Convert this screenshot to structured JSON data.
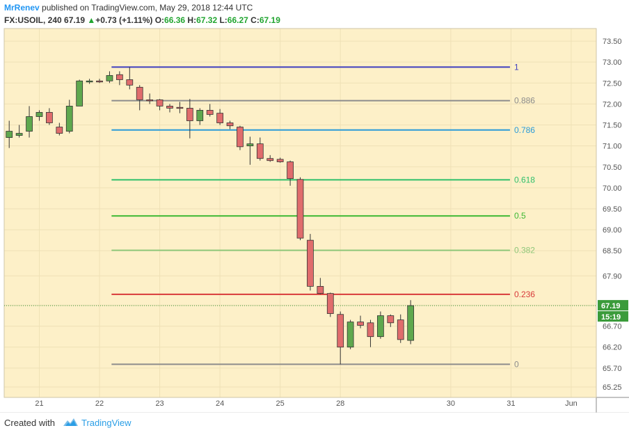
{
  "header": {
    "author": "MrRenev",
    "published_text": "published on TradingView.com, May 29, 2018 12:44 UTC",
    "symbol": "FX:USOIL, 240",
    "last": "67.19",
    "change": "+0.73 (+1.11%)",
    "open_label": "O:",
    "open_value": "66.36",
    "high_label": "H:",
    "high_value": "67.32",
    "low_label": "L:",
    "low_value": "66.27",
    "close_label": "C:",
    "close_value": "67.19",
    "up_arrow_icon": "triangle-up-icon"
  },
  "footer": {
    "created_with": "Created with",
    "brand": "TradingView",
    "logo_icon": "tradingview-cloud-icon"
  },
  "colors": {
    "background": "#fdf0c8",
    "up_candle": "#5fa84e",
    "down_candle": "#e06c6c",
    "price_tag": "#3a9b3a"
  },
  "chart_data": {
    "type": "candlestick",
    "symbol": "FX:USOIL",
    "interval": "240",
    "y_ticks": [
      "73.50",
      "73.00",
      "72.50",
      "72.00",
      "71.50",
      "71.00",
      "70.50",
      "70.00",
      "69.50",
      "69.00",
      "68.50",
      "67.90",
      "67.20",
      "66.70",
      "66.20",
      "65.70",
      "65.25"
    ],
    "ylim": [
      65.0,
      73.8
    ],
    "x_ticks": [
      {
        "label": "21",
        "x": 0
      },
      {
        "label": "22",
        "x": 6
      },
      {
        "label": "23",
        "x": 12
      },
      {
        "label": "24",
        "x": 18
      },
      {
        "label": "25",
        "x": 24
      },
      {
        "label": "28",
        "x": 30
      },
      {
        "label": "30",
        "x": 41
      },
      {
        "label": "31",
        "x": 47
      },
      {
        "label": "Jun",
        "x": 53
      }
    ],
    "xlim": [
      -3.5,
      55.5
    ],
    "last_price": "67.19",
    "countdown": "15:19",
    "grid": true,
    "fib_levels": [
      {
        "label": "1",
        "value": 72.88,
        "color": "#3f3fbf"
      },
      {
        "label": "0.886",
        "value": 72.08,
        "color": "#8c8c8c"
      },
      {
        "label": "0.786",
        "value": 71.38,
        "color": "#2a9bd8"
      },
      {
        "label": "0.618",
        "value": 70.19,
        "color": "#2ebf6a"
      },
      {
        "label": "0.5",
        "value": 69.33,
        "color": "#3cb832"
      },
      {
        "label": "0.382",
        "value": 68.51,
        "color": "#8fc77a"
      },
      {
        "label": "0.236",
        "value": 67.46,
        "color": "#d83a3a"
      },
      {
        "label": "0",
        "value": 65.79,
        "color": "#8c8c8c"
      }
    ],
    "fib_x_start": 7.2,
    "fib_x_end": 46.9,
    "candles": [
      {
        "x": -3,
        "o": 71.2,
        "h": 71.6,
        "l": 70.95,
        "c": 71.35
      },
      {
        "x": -2,
        "o": 71.25,
        "h": 71.5,
        "l": 71.2,
        "c": 71.3
      },
      {
        "x": -1,
        "o": 71.35,
        "h": 71.95,
        "l": 71.2,
        "c": 71.7
      },
      {
        "x": 0,
        "o": 71.7,
        "h": 71.85,
        "l": 71.6,
        "c": 71.8
      },
      {
        "x": 1,
        "o": 71.8,
        "h": 71.9,
        "l": 71.5,
        "c": 71.55
      },
      {
        "x": 2,
        "o": 71.45,
        "h": 71.55,
        "l": 71.25,
        "c": 71.3
      },
      {
        "x": 3,
        "o": 71.35,
        "h": 72.1,
        "l": 71.3,
        "c": 71.95
      },
      {
        "x": 4,
        "o": 71.95,
        "h": 72.58,
        "l": 71.95,
        "c": 72.55
      },
      {
        "x": 5,
        "o": 72.55,
        "h": 72.6,
        "l": 72.48,
        "c": 72.55
      },
      {
        "x": 6,
        "o": 72.55,
        "h": 72.6,
        "l": 72.5,
        "c": 72.53
      },
      {
        "x": 7,
        "o": 72.55,
        "h": 72.78,
        "l": 72.5,
        "c": 72.68
      },
      {
        "x": 8,
        "o": 72.7,
        "h": 72.78,
        "l": 72.45,
        "c": 72.58
      },
      {
        "x": 9,
        "o": 72.58,
        "h": 72.88,
        "l": 72.35,
        "c": 72.45
      },
      {
        "x": 10,
        "o": 72.4,
        "h": 72.45,
        "l": 71.85,
        "c": 72.1
      },
      {
        "x": 11,
        "o": 72.1,
        "h": 72.25,
        "l": 72.0,
        "c": 72.08
      },
      {
        "x": 12,
        "o": 72.1,
        "h": 72.12,
        "l": 71.85,
        "c": 71.95
      },
      {
        "x": 13,
        "o": 71.95,
        "h": 72.0,
        "l": 71.8,
        "c": 71.9
      },
      {
        "x": 14,
        "o": 71.92,
        "h": 72.05,
        "l": 71.78,
        "c": 71.9
      },
      {
        "x": 15,
        "o": 71.9,
        "h": 72.12,
        "l": 71.18,
        "c": 71.6
      },
      {
        "x": 16,
        "o": 71.6,
        "h": 71.9,
        "l": 71.5,
        "c": 71.85
      },
      {
        "x": 17,
        "o": 71.85,
        "h": 72.0,
        "l": 71.7,
        "c": 71.75
      },
      {
        "x": 18,
        "o": 71.78,
        "h": 71.88,
        "l": 71.5,
        "c": 71.55
      },
      {
        "x": 19,
        "o": 71.55,
        "h": 71.6,
        "l": 71.4,
        "c": 71.48
      },
      {
        "x": 20,
        "o": 71.45,
        "h": 71.48,
        "l": 70.9,
        "c": 70.98
      },
      {
        "x": 21,
        "o": 71.0,
        "h": 71.22,
        "l": 70.55,
        "c": 71.05
      },
      {
        "x": 22,
        "o": 71.05,
        "h": 71.2,
        "l": 70.65,
        "c": 70.7
      },
      {
        "x": 23,
        "o": 70.7,
        "h": 70.78,
        "l": 70.62,
        "c": 70.65
      },
      {
        "x": 24,
        "o": 70.68,
        "h": 70.72,
        "l": 70.6,
        "c": 70.62
      },
      {
        "x": 25,
        "o": 70.62,
        "h": 70.65,
        "l": 70.05,
        "c": 70.22
      },
      {
        "x": 26,
        "o": 70.2,
        "h": 70.25,
        "l": 68.75,
        "c": 68.8
      },
      {
        "x": 27,
        "o": 68.75,
        "h": 68.9,
        "l": 67.55,
        "c": 67.65
      },
      {
        "x": 28,
        "o": 67.65,
        "h": 67.85,
        "l": 67.46,
        "c": 67.48
      },
      {
        "x": 29,
        "o": 67.48,
        "h": 67.5,
        "l": 66.92,
        "c": 67.0
      },
      {
        "x": 30,
        "o": 66.98,
        "h": 67.05,
        "l": 65.79,
        "c": 66.2
      },
      {
        "x": 31,
        "o": 66.2,
        "h": 66.85,
        "l": 66.15,
        "c": 66.8
      },
      {
        "x": 32,
        "o": 66.8,
        "h": 66.95,
        "l": 66.65,
        "c": 66.72
      },
      {
        "x": 33,
        "o": 66.78,
        "h": 66.85,
        "l": 66.2,
        "c": 66.45
      },
      {
        "x": 34,
        "o": 66.45,
        "h": 67.05,
        "l": 66.4,
        "c": 66.95
      },
      {
        "x": 35,
        "o": 66.95,
        "h": 66.98,
        "l": 66.68,
        "c": 66.78
      },
      {
        "x": 36,
        "o": 66.85,
        "h": 66.98,
        "l": 66.3,
        "c": 66.38
      },
      {
        "x": 37,
        "o": 66.36,
        "h": 67.32,
        "l": 66.27,
        "c": 67.19
      }
    ]
  }
}
